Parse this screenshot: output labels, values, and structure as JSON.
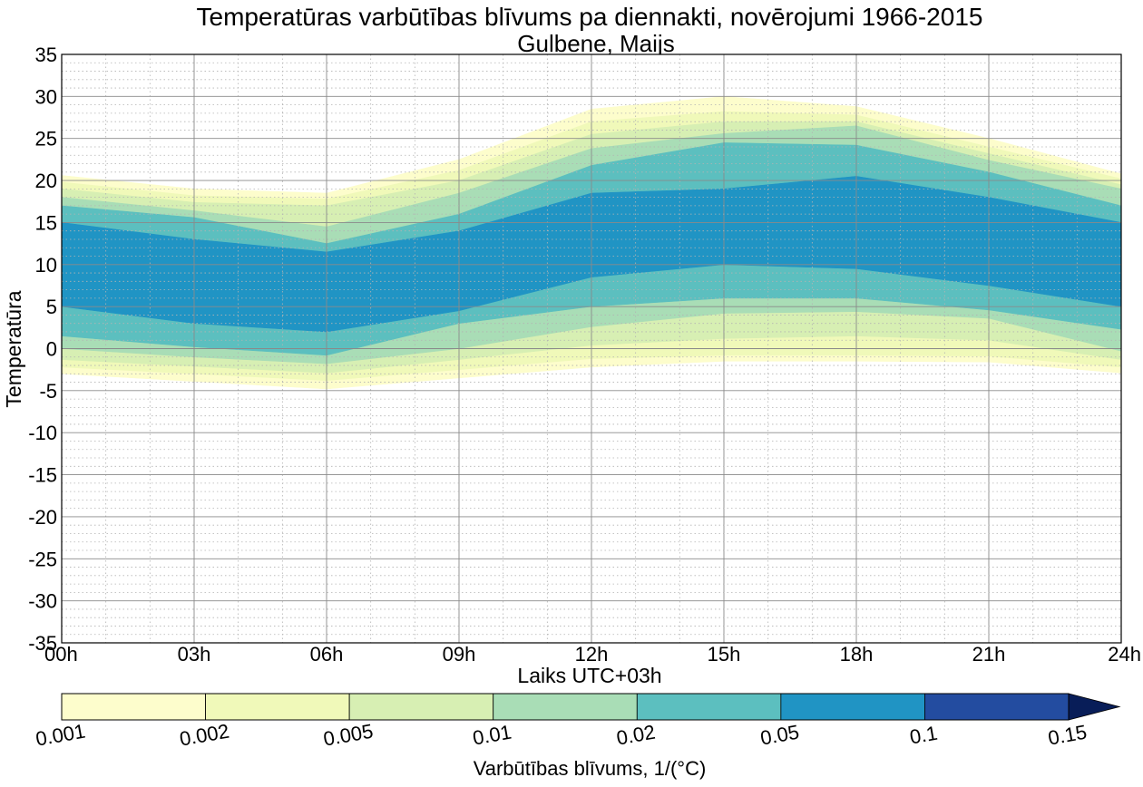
{
  "chart_data": {
    "type": "contourf",
    "title": "Temperatūras varbūtības blīvums pa diennakti, novērojumi 1966-2015",
    "subtitle": "Gulbene, Maijs",
    "xlabel": "Laiks UTC+03h",
    "ylabel": "Temperatūra",
    "xlim": [
      0,
      24
    ],
    "ylim": [
      -35,
      35
    ],
    "x_ticks": [
      {
        "value": 0,
        "label": "00h"
      },
      {
        "value": 3,
        "label": "03h"
      },
      {
        "value": 6,
        "label": "06h"
      },
      {
        "value": 9,
        "label": "09h"
      },
      {
        "value": 12,
        "label": "12h"
      },
      {
        "value": 15,
        "label": "15h"
      },
      {
        "value": 18,
        "label": "18h"
      },
      {
        "value": 21,
        "label": "21h"
      },
      {
        "value": 24,
        "label": "24h"
      }
    ],
    "y_ticks": [
      {
        "value": 35,
        "label": "35"
      },
      {
        "value": 30,
        "label": "30"
      },
      {
        "value": 25,
        "label": "25"
      },
      {
        "value": 20,
        "label": "20"
      },
      {
        "value": 15,
        "label": "15"
      },
      {
        "value": 10,
        "label": "10"
      },
      {
        "value": 5,
        "label": "5"
      },
      {
        "value": 0,
        "label": "0"
      },
      {
        "value": -5,
        "label": "-5"
      },
      {
        "value": -10,
        "label": "-10"
      },
      {
        "value": -15,
        "label": "-15"
      },
      {
        "value": -20,
        "label": "-20"
      },
      {
        "value": -25,
        "label": "-25"
      },
      {
        "value": -30,
        "label": "-30"
      },
      {
        "value": -35,
        "label": "-35"
      }
    ],
    "grid": true,
    "minor_grid": true,
    "contour_hours": [
      0,
      3,
      6,
      9,
      12,
      15,
      18,
      21,
      24
    ],
    "contour_bands": [
      {
        "level": 0.001,
        "color": "#fdfdcc",
        "upper": [
          20.6,
          19.0,
          18.5,
          22.5,
          28.5,
          30.0,
          28.8,
          25.0,
          20.8
        ],
        "lower": [
          -3.0,
          -3.9,
          -4.8,
          -3.5,
          -2.2,
          -1.5,
          -1.5,
          -1.6,
          -2.9
        ]
      },
      {
        "level": 0.002,
        "color": "#f0f9b9",
        "upper": [
          19.8,
          18.2,
          17.8,
          21.2,
          27.0,
          28.2,
          27.8,
          24.0,
          20.2
        ],
        "lower": [
          -2.2,
          -3.0,
          -3.8,
          -2.5,
          -1.2,
          -0.8,
          -0.8,
          -0.9,
          -2.2
        ]
      },
      {
        "level": 0.005,
        "color": "#d7efb3",
        "upper": [
          19.0,
          17.4,
          17.0,
          20.0,
          25.5,
          27.0,
          27.0,
          23.2,
          19.5
        ],
        "lower": [
          -1.3,
          -2.1,
          -2.9,
          -1.3,
          0.4,
          1.2,
          1.5,
          1.0,
          -1.3
        ]
      },
      {
        "level": 0.01,
        "color": "#a9ddb6",
        "upper": [
          18.0,
          16.4,
          14.5,
          18.5,
          23.8,
          25.6,
          26.5,
          22.4,
          19.0
        ],
        "lower": [
          0.0,
          -1.0,
          -1.8,
          0.0,
          2.6,
          4.2,
          4.4,
          3.6,
          -0.3
        ]
      },
      {
        "level": 0.02,
        "color": "#5cbfbf",
        "upper": [
          17.0,
          15.6,
          12.5,
          16.0,
          21.8,
          24.5,
          24.2,
          21.0,
          17.0
        ],
        "lower": [
          1.5,
          0.2,
          -0.8,
          3.0,
          5.0,
          6.0,
          6.0,
          4.6,
          2.3
        ]
      },
      {
        "level": 0.05,
        "color": "#2094c4",
        "upper": [
          15.0,
          13.0,
          11.5,
          14.0,
          18.5,
          19.0,
          20.5,
          18.0,
          15.0
        ],
        "lower": [
          5.0,
          3.0,
          2.0,
          4.5,
          8.5,
          10.0,
          9.5,
          7.5,
          5.0
        ]
      }
    ],
    "colorbar": {
      "label": "Varbūtības blīvums, 1/(°C)",
      "ticks": [
        "0.001",
        "0.002",
        "0.005",
        "0.01",
        "0.02",
        "0.05",
        "0.1",
        "0.15"
      ],
      "colors": [
        "#fdfdcc",
        "#f0f9b9",
        "#d7efb3",
        "#a9ddb6",
        "#5cbfbf",
        "#2094c4",
        "#234ca0",
        "#081d58"
      ],
      "extend": "max"
    }
  }
}
